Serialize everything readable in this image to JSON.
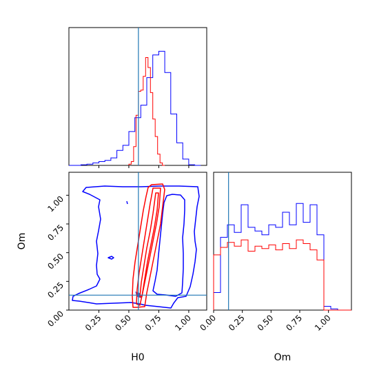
{
  "chart_data": {
    "type": "corner",
    "parameters": [
      "H0",
      "Om"
    ],
    "truths": {
      "H0": 0.58,
      "Om": 0.13
    },
    "colors": {
      "blue": "#0000ff",
      "red": "#ff0000",
      "truth": "#1f77b4"
    },
    "panels": {
      "h0_hist": {
        "xlim": [
          0.0,
          1.15
        ],
        "bins": [
          0.0,
          0.05,
          0.1,
          0.15,
          0.2,
          0.25,
          0.3,
          0.35,
          0.4,
          0.45,
          0.5,
          0.55,
          0.6,
          0.65,
          0.7,
          0.75,
          0.8,
          0.85,
          0.9,
          0.95,
          1.0,
          1.05,
          1.1
        ],
        "series": [
          {
            "color": "blue",
            "counts": [
              0,
              0,
              0.5,
              1,
              2,
              3,
              4,
              6,
              12,
              16,
              27,
              38,
              48,
              70,
              88,
              91,
              74,
              41,
              18,
              5,
              0.5,
              0
            ]
          }
        ]
      },
      "h0_hist_red": {
        "bins": [
          0.5,
          0.52,
          0.54,
          0.56,
          0.58,
          0.6,
          0.62,
          0.64,
          0.66,
          0.68,
          0.7,
          0.72,
          0.74,
          0.76,
          0.78,
          0.8
        ],
        "counts": [
          1,
          3,
          15,
          40,
          59,
          60,
          71,
          86,
          78,
          58,
          37,
          23,
          9,
          2,
          0
        ]
      },
      "om_hist": {
        "xlim": [
          0.0,
          1.2
        ],
        "bins": [
          0.0,
          0.06,
          0.12,
          0.18,
          0.24,
          0.3,
          0.36,
          0.42,
          0.48,
          0.54,
          0.6,
          0.66,
          0.72,
          0.78,
          0.84,
          0.9,
          0.96,
          1.02,
          1.08,
          1.14,
          1.2
        ],
        "series": [
          {
            "color": "blue",
            "counts": [
              14,
              58,
              68,
              62,
              84,
              66,
              63,
              60,
              68,
              66,
              78,
              68,
              85,
              70,
              84,
              60,
              3,
              1,
              0,
              0
            ]
          },
          {
            "color": "red",
            "counts": [
              44,
              50,
              54,
              51,
              56,
              47,
              51,
              49,
              52,
              48,
              53,
              49,
              56,
              53,
              48,
              40,
              0,
              0,
              0,
              0
            ]
          }
        ]
      },
      "joint": {
        "xlim": [
          0.0,
          1.15
        ],
        "ylim": [
          0.0,
          1.2
        ]
      }
    },
    "ticks": {
      "h0": [
        "0.25",
        "0.50",
        "0.75",
        "1.00"
      ],
      "om_y": [
        "0.00",
        "0.25",
        "0.50",
        "0.75",
        "1.00"
      ],
      "om_x": [
        "0.00",
        "0.25",
        "0.50",
        "0.75",
        "1.00"
      ]
    },
    "labels": {
      "x_left": "H0",
      "x_right": "Om",
      "y_left": "Om"
    }
  }
}
